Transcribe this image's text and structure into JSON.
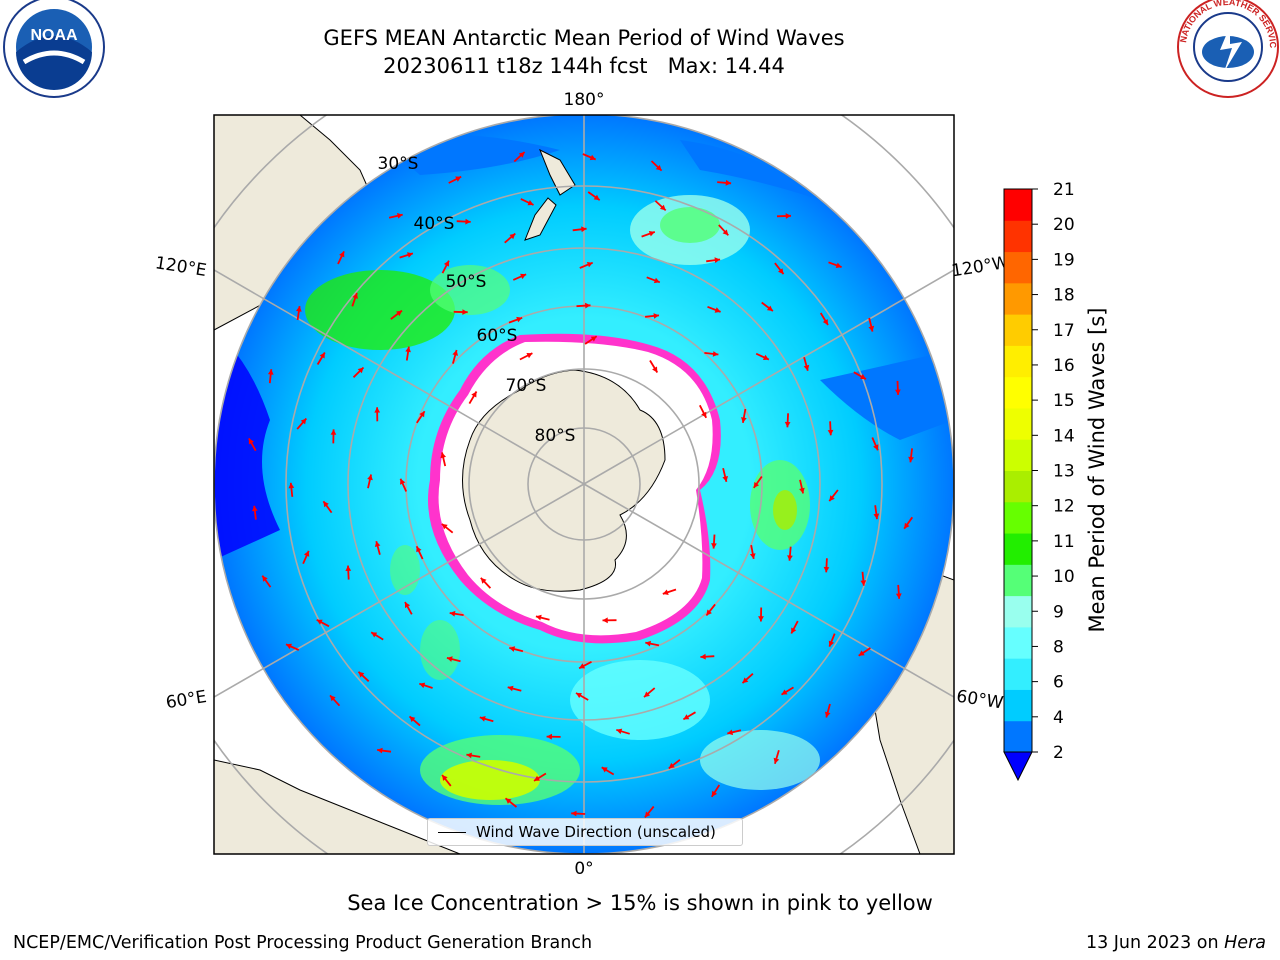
{
  "title": {
    "line1": "GEFS MEAN Antarctic Mean Period of Wind Waves",
    "line2": "20230611 t18z 144h fcst   Max: 14.44"
  },
  "logos": {
    "noaa_text": "NOAA",
    "nws_text": "NATIONAL WEATHER SERVICE"
  },
  "map": {
    "projection": "south-polar-stereographic",
    "lon_labels": [
      "180°",
      "120°E",
      "120°W",
      "60°E",
      "60°W",
      "0°"
    ],
    "lat_labels": [
      "30°S",
      "40°S",
      "50°S",
      "60°S",
      "70°S",
      "80°S"
    ],
    "legend_label": "Wind Wave Direction (unscaled)",
    "arrow_color": "#ff0000",
    "land_color": "#eeeadb",
    "ice_color": "#ffffff",
    "ice_edge_colors": [
      "#ff33cc",
      "#ff99ee",
      "#ffcc66"
    ]
  },
  "colorbar": {
    "label": "Mean Period of Wind Waves [s]",
    "ticks": [
      "2",
      "4",
      "6",
      "8",
      "9",
      "10",
      "11",
      "12",
      "13",
      "14",
      "15",
      "16",
      "17",
      "18",
      "19",
      "20",
      "21"
    ],
    "colors": [
      "#0077ff",
      "#00ccff",
      "#33eeff",
      "#66ffff",
      "#99ffee",
      "#55ff77",
      "#22ee00",
      "#66ff00",
      "#aaee00",
      "#ccff00",
      "#eeff00",
      "#ffff00",
      "#ffee00",
      "#ffcc00",
      "#ff9900",
      "#ff6600",
      "#ff3300",
      "#ff0000"
    ],
    "under_color": "#0000ff"
  },
  "caption": "Sea Ice Concentration > 15% is shown in pink to yellow",
  "footer": {
    "left": "NCEP/EMC/Verification Post Processing Product Generation Branch",
    "right_date": "13 Jun 2023 on ",
    "right_system": "Hera"
  }
}
